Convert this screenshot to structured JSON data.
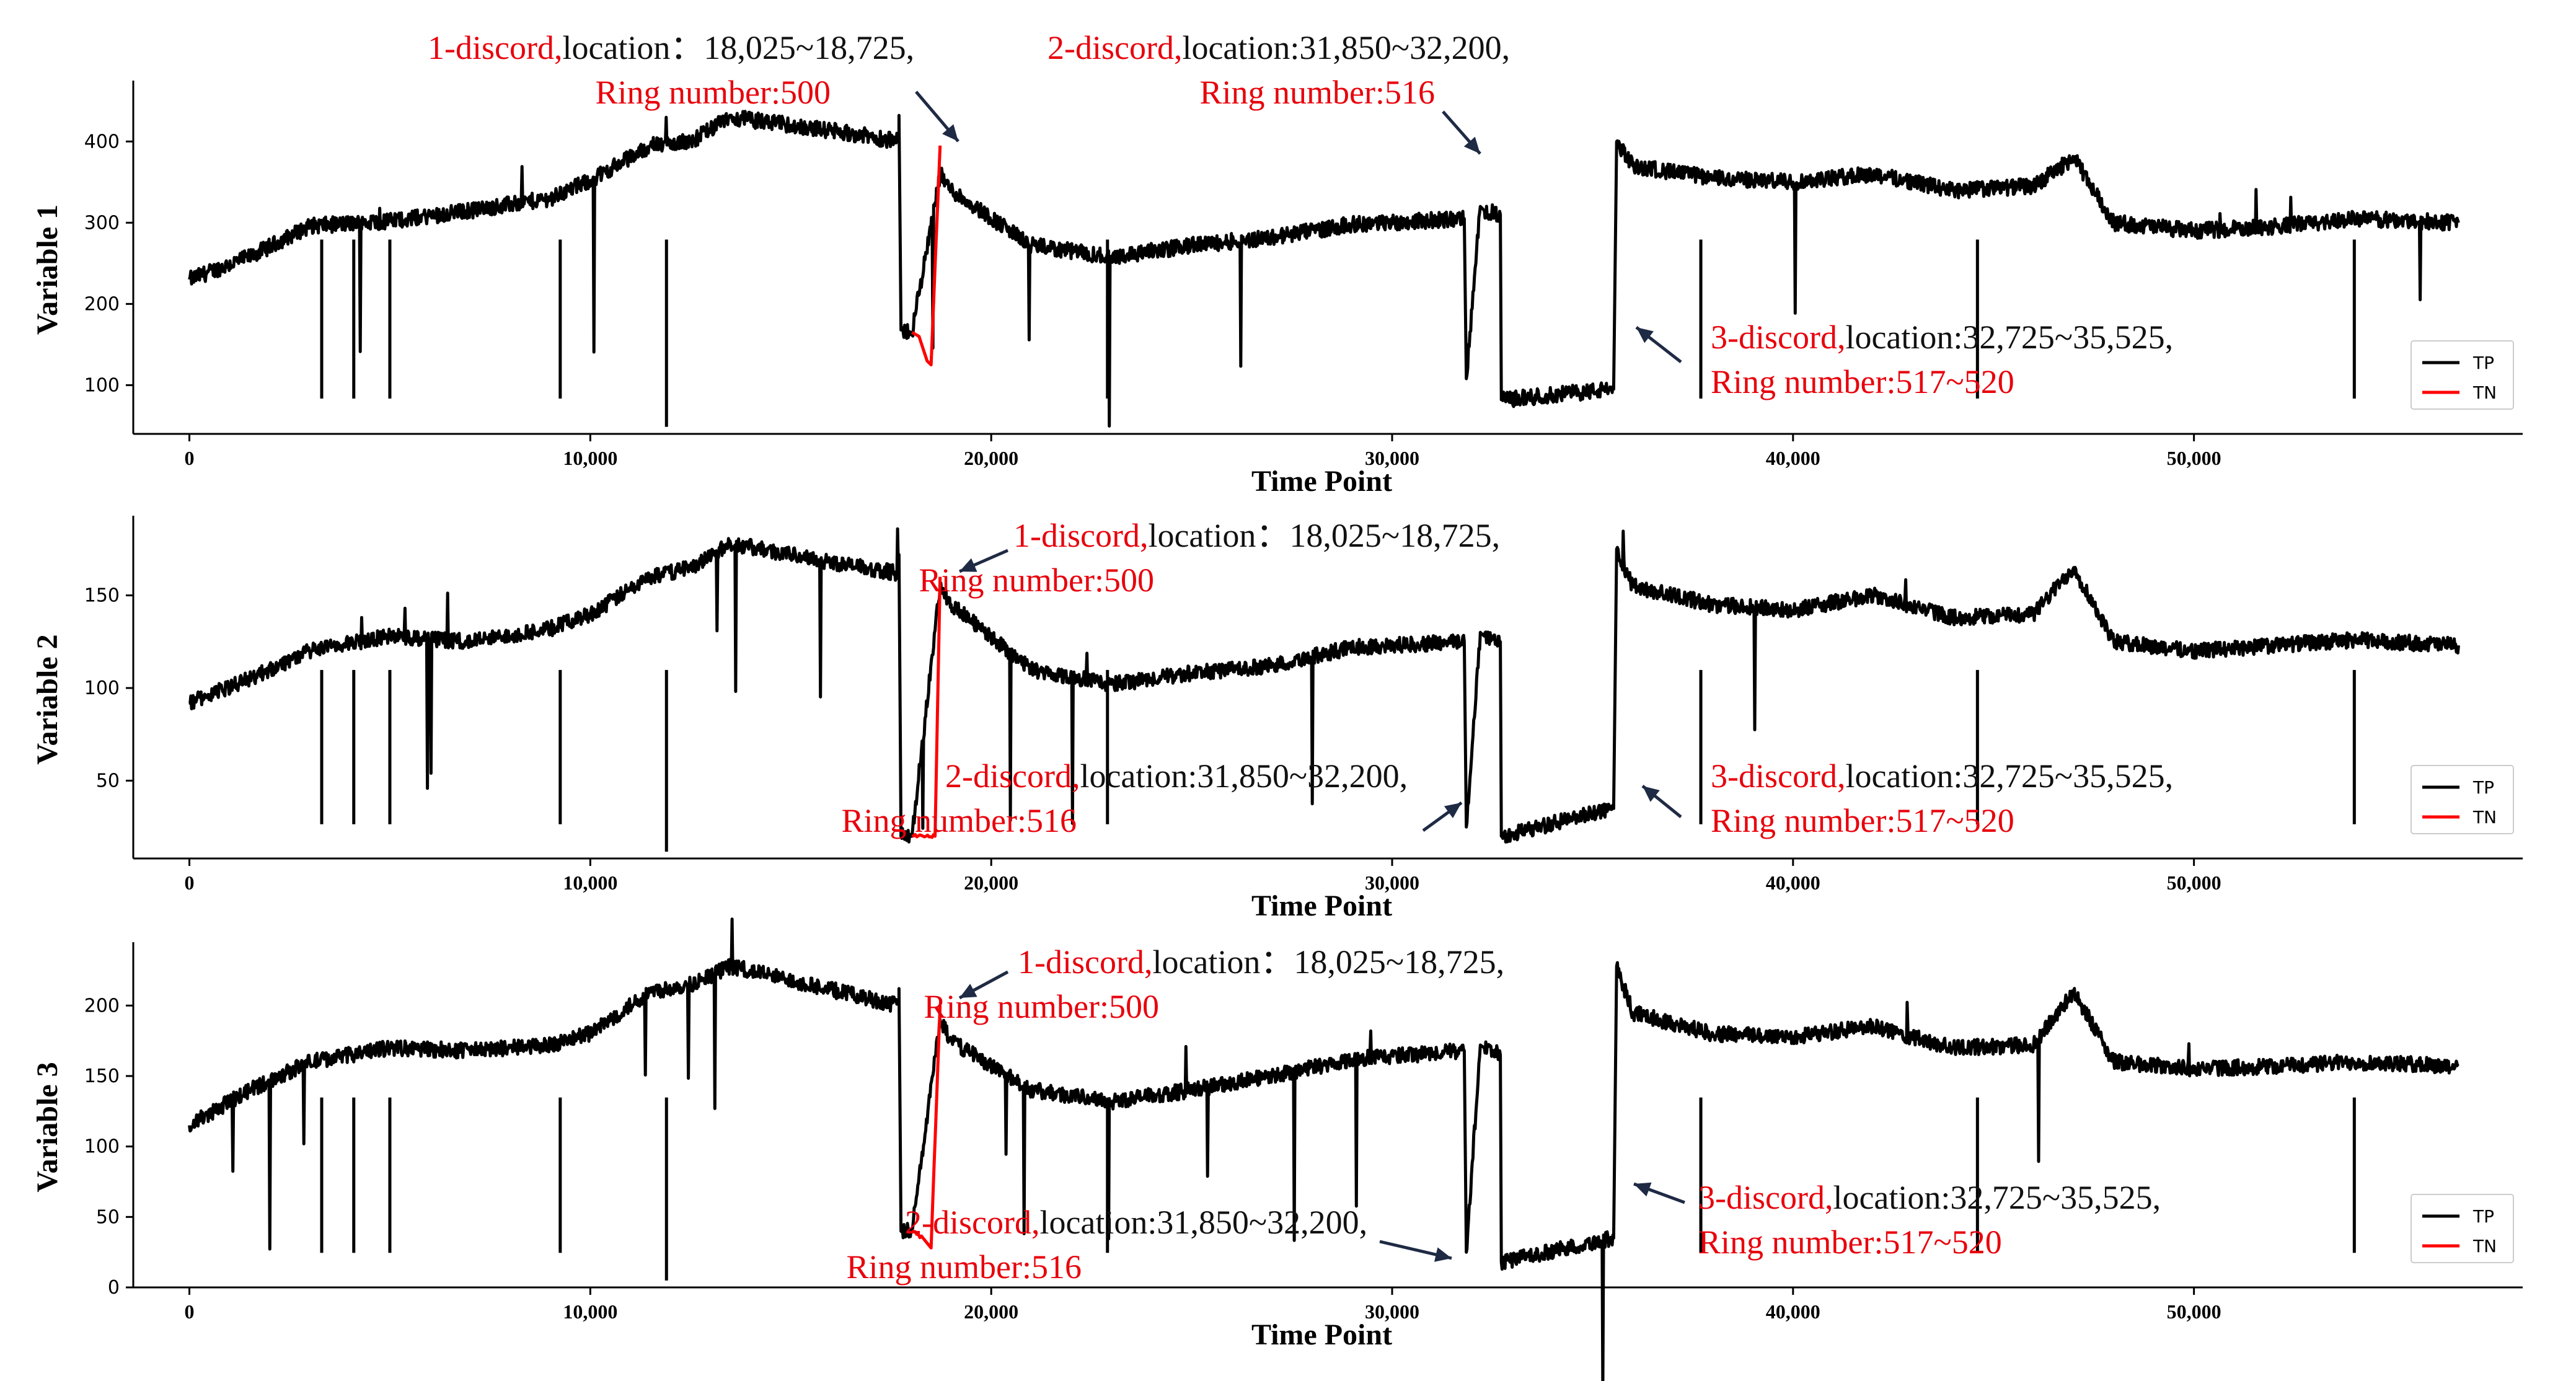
{
  "figure_caption": "",
  "colors": {
    "tp": "#000000",
    "tn": "#ff0000",
    "arrow": "#1f2a44",
    "red_text": "#e8000b",
    "black_text": "#111111"
  },
  "chart_data": [
    {
      "type": "line",
      "ylabel": "Variable 1",
      "xlabel": "Time Point",
      "xlim": [
        -1400,
        58200
      ],
      "ylim": [
        40,
        475
      ],
      "yticks": [
        100,
        200,
        300,
        400
      ],
      "xticks": [
        0,
        10000,
        20000,
        30000,
        40000,
        50000
      ],
      "xtick_labels": [
        "0",
        "10,000",
        "20,000",
        "30,000",
        "40,000",
        "50,000"
      ],
      "legend": {
        "position": "bottom-right",
        "entries": [
          "TP",
          "TN"
        ]
      },
      "series": [
        {
          "name": "TP",
          "color": "#000000",
          "x": [
            0,
            1500,
            3000,
            5000,
            7000,
            9000,
            10000,
            11500,
            12500,
            13500,
            15000,
            16500,
            17700,
            17700,
            17750,
            18000,
            18025,
            18725,
            19000,
            21000,
            23000,
            25000,
            27000,
            29000,
            31800,
            31850,
            32200,
            32300,
            32700,
            32725,
            35525,
            35600,
            36000,
            38000,
            40000,
            42000,
            44000,
            46000,
            47000,
            48000,
            50000,
            52000,
            54000,
            56600
          ],
          "y": [
            230,
            258,
            296,
            302,
            315,
            330,
            352,
            395,
            400,
            430,
            420,
            410,
            400,
            432,
            168,
            165,
            165,
            360,
            340,
            272,
            258,
            272,
            282,
            298,
            305,
            108,
            320,
            315,
            310,
            82,
            95,
            400,
            370,
            355,
            350,
            360,
            340,
            345,
            380,
            300,
            290,
            295,
            305,
            300
          ]
        },
        {
          "name": "TN",
          "color": "#ff0000",
          "x": [
            18025,
            18200,
            18400,
            18500,
            18725
          ],
          "y": [
            165,
            160,
            130,
            125,
            395
          ]
        }
      ],
      "annotations": [
        {
          "red": "1-discord,",
          "black": "location：18,025~18,725,",
          "line2": "Ring number:500"
        },
        {
          "red": "2-discord,",
          "black": "location:31,850~32,200,",
          "line2": "Ring number:516"
        },
        {
          "red": "3-discord,",
          "black": "location:32,725~35,525,",
          "line2": "Ring number:517~520"
        }
      ]
    },
    {
      "type": "line",
      "ylabel": "Variable 2",
      "xlabel": "Time Point",
      "xlim": [
        -1400,
        58200
      ],
      "ylim": [
        8,
        193
      ],
      "yticks": [
        50,
        100,
        150
      ],
      "xticks": [
        0,
        10000,
        20000,
        30000,
        40000,
        50000
      ],
      "xtick_labels": [
        "0",
        "10,000",
        "20,000",
        "30,000",
        "40,000",
        "50,000"
      ],
      "legend": {
        "position": "bottom-right",
        "entries": [
          "TP",
          "TN"
        ]
      },
      "series": [
        {
          "name": "TP",
          "color": "#000000",
          "x": [
            0,
            1500,
            3000,
            5000,
            7000,
            9000,
            10000,
            11500,
            12500,
            13500,
            15000,
            16500,
            17700,
            17700,
            17750,
            18000,
            18025,
            18725,
            19000,
            21000,
            23000,
            25000,
            27000,
            29000,
            31800,
            31850,
            32200,
            32300,
            32700,
            32725,
            35525,
            35600,
            36000,
            38000,
            40000,
            42000,
            44000,
            46000,
            47000,
            48000,
            50000,
            52000,
            54000,
            56600
          ],
          "y": [
            92,
            105,
            120,
            128,
            125,
            132,
            140,
            160,
            165,
            178,
            172,
            166,
            162,
            172,
            20,
            20,
            20,
            155,
            145,
            110,
            102,
            108,
            112,
            122,
            125,
            25,
            130,
            128,
            125,
            20,
            35,
            175,
            155,
            145,
            142,
            150,
            138,
            140,
            165,
            125,
            120,
            123,
            126,
            123
          ]
        },
        {
          "name": "TN",
          "color": "#ff0000",
          "x": [
            18025,
            18300,
            18600,
            18725
          ],
          "y": [
            20,
            20,
            20,
            160
          ]
        }
      ],
      "annotations": [
        {
          "red": "1-discord,",
          "black": "location：18,025~18,725,",
          "line2": "Ring number:500"
        },
        {
          "red": "2-discord,",
          "black": "location:31,850~32,200,",
          "line2": "Ring number:516"
        },
        {
          "red": "3-discord,",
          "black": "location:32,725~35,525,",
          "line2": "Ring number:517~520"
        }
      ]
    },
    {
      "type": "line",
      "ylabel": "Variable 3",
      "xlabel": "Time Point",
      "xlim": [
        -1400,
        58200
      ],
      "ylim": [
        0,
        245
      ],
      "yticks": [
        0,
        50,
        100,
        150,
        200
      ],
      "xticks": [
        0,
        10000,
        20000,
        30000,
        40000,
        50000
      ],
      "xtick_labels": [
        "0",
        "10,000",
        "20,000",
        "30,000",
        "40,000",
        "50,000"
      ],
      "legend": {
        "position": "bottom-right",
        "entries": [
          "TP",
          "TN"
        ]
      },
      "series": [
        {
          "name": "TP",
          "color": "#000000",
          "x": [
            0,
            1500,
            3000,
            5000,
            7000,
            9000,
            10000,
            11500,
            12500,
            13500,
            15000,
            16500,
            17700,
            17700,
            17750,
            18000,
            18025,
            18725,
            19000,
            21000,
            23000,
            25000,
            27000,
            29000,
            31800,
            31850,
            32200,
            32300,
            32700,
            32725,
            35525,
            35600,
            36000,
            38000,
            40000,
            42000,
            44000,
            46000,
            47000,
            48000,
            50000,
            52000,
            54000,
            56600
          ],
          "y": [
            115,
            140,
            160,
            170,
            168,
            172,
            180,
            210,
            215,
            228,
            218,
            208,
            200,
            212,
            40,
            40,
            40,
            190,
            175,
            140,
            132,
            140,
            150,
            162,
            168,
            25,
            172,
            170,
            165,
            18,
            35,
            228,
            195,
            180,
            178,
            185,
            170,
            172,
            210,
            160,
            155,
            157,
            160,
            157
          ]
        },
        {
          "name": "TN",
          "color": "#ff0000",
          "x": [
            18025,
            18300,
            18500,
            18725
          ],
          "y": [
            40,
            35,
            28,
            200
          ]
        }
      ],
      "annotations": [
        {
          "red": "1-discord,",
          "black": "location：18,025~18,725,",
          "line2": "Ring number:500"
        },
        {
          "red": "2-discord,",
          "black": "location:31,850~32,200,",
          "line2": "Ring number:516"
        },
        {
          "red": "3-discord,",
          "black": "location:32,725~35,525,",
          "line2": "Ring number:517~520"
        }
      ]
    }
  ]
}
